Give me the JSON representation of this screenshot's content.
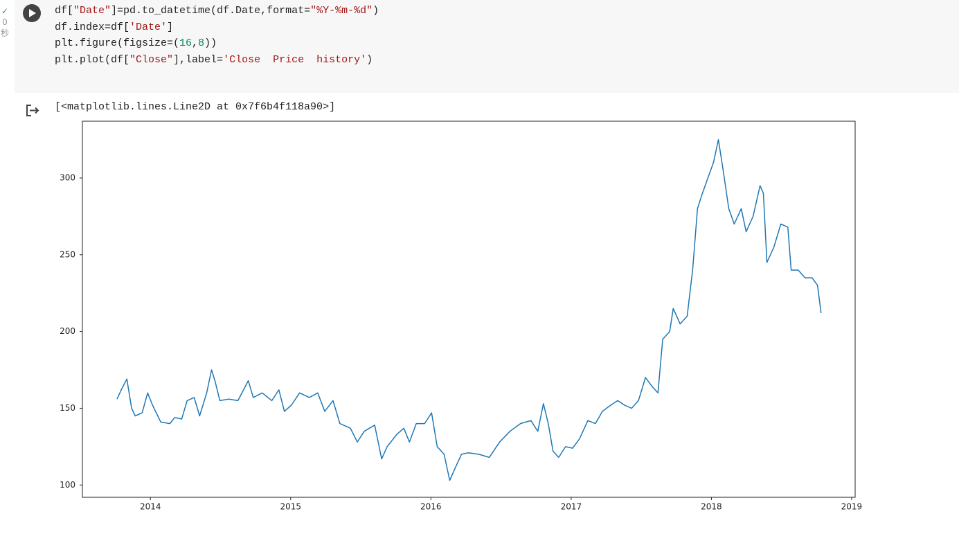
{
  "cell": {
    "status_time": "0",
    "status_unit": "秒",
    "code_lines": [
      [
        "df[",
        "\"Date\"",
        "]=pd.to_datetime(df.Date,format=",
        "\"%Y-%m-%d\"",
        ")"
      ],
      [
        "df.index=df[",
        "'Date'",
        "]"
      ],
      [
        "plt.figure(figsize=(",
        "16",
        ",",
        "8",
        "))"
      ],
      [
        "plt.plot(df[",
        "\"Close\"",
        "],label=",
        "'Close  Price  history'",
        ")"
      ]
    ],
    "output_text": "[<matplotlib.lines.Line2D at 0x7f6b4f118a90>]"
  },
  "chart_data": {
    "type": "line",
    "x": [
      2013.762,
      2013.792,
      2013.832,
      2013.866,
      2013.891,
      2013.941,
      2013.98,
      2014.015,
      2014.074,
      2014.139,
      2014.173,
      2014.223,
      2014.262,
      2014.312,
      2014.351,
      2014.401,
      2014.436,
      2014.46,
      2014.495,
      2014.559,
      2014.624,
      2014.698,
      2014.733,
      2014.797,
      2014.866,
      2014.916,
      2014.955,
      2015.005,
      2015.064,
      2015.134,
      2015.193,
      2015.243,
      2015.302,
      2015.351,
      2015.426,
      2015.475,
      2015.525,
      2015.599,
      2015.649,
      2015.688,
      2015.757,
      2015.807,
      2015.847,
      2015.896,
      2015.955,
      2016.005,
      2016.045,
      2016.094,
      2016.134,
      2016.168,
      2016.218,
      2016.267,
      2016.342,
      2016.416,
      2016.49,
      2016.564,
      2016.639,
      2016.713,
      2016.762,
      2016.802,
      2016.837,
      2016.871,
      2016.911,
      2016.96,
      2017.01,
      2017.059,
      2017.119,
      2017.173,
      2017.223,
      2017.282,
      2017.332,
      2017.381,
      2017.431,
      2017.48,
      2017.53,
      2017.579,
      2017.619,
      2017.653,
      2017.703,
      2017.728,
      2017.777,
      2017.827,
      2017.866,
      2017.901,
      2017.936,
      2017.975,
      2018.015,
      2018.05,
      2018.084,
      2018.124,
      2018.163,
      2018.213,
      2018.248,
      2018.297,
      2018.347,
      2018.371,
      2018.396,
      2018.446,
      2018.495,
      2018.545,
      2018.569,
      2018.619,
      2018.668,
      2018.718,
      2018.757,
      2018.782
    ],
    "series": [
      {
        "color": "#1f77b4",
        "values": [
          156,
          162,
          169,
          150,
          145,
          147,
          160,
          152,
          141,
          140,
          144,
          143,
          155,
          157,
          145,
          160,
          175,
          168,
          155,
          156,
          155,
          168,
          157,
          160,
          155,
          162,
          148,
          152,
          160,
          157,
          160,
          148,
          155,
          140,
          137,
          128,
          135,
          139,
          117,
          125,
          133,
          137,
          128,
          140,
          140,
          147,
          125,
          120,
          103,
          110,
          120,
          121,
          120,
          118,
          128,
          135,
          140,
          142,
          135,
          153,
          140,
          122,
          118,
          125,
          124,
          130,
          142,
          140,
          148,
          152,
          155,
          152,
          150,
          155,
          170,
          164,
          160,
          195,
          200,
          215,
          205,
          210,
          240,
          280,
          290,
          300,
          310,
          325,
          305,
          280,
          270,
          280,
          265,
          275,
          295,
          290,
          245,
          255,
          270,
          268,
          240,
          240,
          235,
          235,
          230,
          212
        ]
      }
    ],
    "xlim": [
      2013.515,
      2019.025
    ],
    "xticks": [
      2014,
      2015,
      2016,
      2017,
      2018,
      2019
    ],
    "ylim": [
      92,
      337
    ],
    "yticks": [
      100,
      150,
      200,
      250,
      300
    ],
    "grid": false
  }
}
